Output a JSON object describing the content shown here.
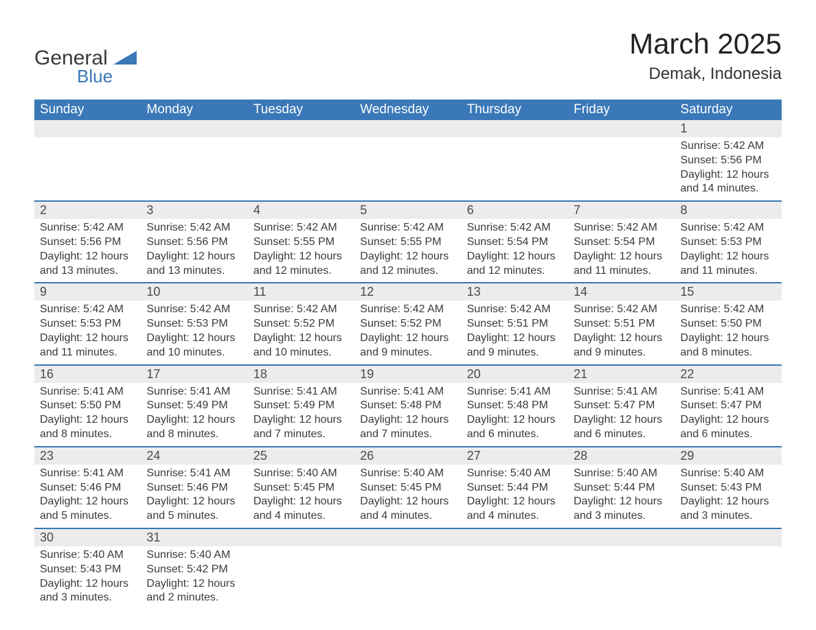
{
  "logo": {
    "word1": "General",
    "word2": "Blue"
  },
  "title": "March 2025",
  "location": "Demak, Indonesia",
  "colors": {
    "header_bg": "#3a78b8",
    "header_text": "#ffffff",
    "daynum_bg": "#ececec",
    "border": "#3a78b8",
    "text": "#3a3a3a",
    "logo_blue": "#3a78b8"
  },
  "day_names": [
    "Sunday",
    "Monday",
    "Tuesday",
    "Wednesday",
    "Thursday",
    "Friday",
    "Saturday"
  ],
  "weeks": [
    [
      null,
      null,
      null,
      null,
      null,
      null,
      {
        "n": "1",
        "sr": "Sunrise: 5:42 AM",
        "ss": "Sunset: 5:56 PM",
        "dl": "Daylight: 12 hours and 14 minutes."
      }
    ],
    [
      {
        "n": "2",
        "sr": "Sunrise: 5:42 AM",
        "ss": "Sunset: 5:56 PM",
        "dl": "Daylight: 12 hours and 13 minutes."
      },
      {
        "n": "3",
        "sr": "Sunrise: 5:42 AM",
        "ss": "Sunset: 5:56 PM",
        "dl": "Daylight: 12 hours and 13 minutes."
      },
      {
        "n": "4",
        "sr": "Sunrise: 5:42 AM",
        "ss": "Sunset: 5:55 PM",
        "dl": "Daylight: 12 hours and 12 minutes."
      },
      {
        "n": "5",
        "sr": "Sunrise: 5:42 AM",
        "ss": "Sunset: 5:55 PM",
        "dl": "Daylight: 12 hours and 12 minutes."
      },
      {
        "n": "6",
        "sr": "Sunrise: 5:42 AM",
        "ss": "Sunset: 5:54 PM",
        "dl": "Daylight: 12 hours and 12 minutes."
      },
      {
        "n": "7",
        "sr": "Sunrise: 5:42 AM",
        "ss": "Sunset: 5:54 PM",
        "dl": "Daylight: 12 hours and 11 minutes."
      },
      {
        "n": "8",
        "sr": "Sunrise: 5:42 AM",
        "ss": "Sunset: 5:53 PM",
        "dl": "Daylight: 12 hours and 11 minutes."
      }
    ],
    [
      {
        "n": "9",
        "sr": "Sunrise: 5:42 AM",
        "ss": "Sunset: 5:53 PM",
        "dl": "Daylight: 12 hours and 11 minutes."
      },
      {
        "n": "10",
        "sr": "Sunrise: 5:42 AM",
        "ss": "Sunset: 5:53 PM",
        "dl": "Daylight: 12 hours and 10 minutes."
      },
      {
        "n": "11",
        "sr": "Sunrise: 5:42 AM",
        "ss": "Sunset: 5:52 PM",
        "dl": "Daylight: 12 hours and 10 minutes."
      },
      {
        "n": "12",
        "sr": "Sunrise: 5:42 AM",
        "ss": "Sunset: 5:52 PM",
        "dl": "Daylight: 12 hours and 9 minutes."
      },
      {
        "n": "13",
        "sr": "Sunrise: 5:42 AM",
        "ss": "Sunset: 5:51 PM",
        "dl": "Daylight: 12 hours and 9 minutes."
      },
      {
        "n": "14",
        "sr": "Sunrise: 5:42 AM",
        "ss": "Sunset: 5:51 PM",
        "dl": "Daylight: 12 hours and 9 minutes."
      },
      {
        "n": "15",
        "sr": "Sunrise: 5:42 AM",
        "ss": "Sunset: 5:50 PM",
        "dl": "Daylight: 12 hours and 8 minutes."
      }
    ],
    [
      {
        "n": "16",
        "sr": "Sunrise: 5:41 AM",
        "ss": "Sunset: 5:50 PM",
        "dl": "Daylight: 12 hours and 8 minutes."
      },
      {
        "n": "17",
        "sr": "Sunrise: 5:41 AM",
        "ss": "Sunset: 5:49 PM",
        "dl": "Daylight: 12 hours and 8 minutes."
      },
      {
        "n": "18",
        "sr": "Sunrise: 5:41 AM",
        "ss": "Sunset: 5:49 PM",
        "dl": "Daylight: 12 hours and 7 minutes."
      },
      {
        "n": "19",
        "sr": "Sunrise: 5:41 AM",
        "ss": "Sunset: 5:48 PM",
        "dl": "Daylight: 12 hours and 7 minutes."
      },
      {
        "n": "20",
        "sr": "Sunrise: 5:41 AM",
        "ss": "Sunset: 5:48 PM",
        "dl": "Daylight: 12 hours and 6 minutes."
      },
      {
        "n": "21",
        "sr": "Sunrise: 5:41 AM",
        "ss": "Sunset: 5:47 PM",
        "dl": "Daylight: 12 hours and 6 minutes."
      },
      {
        "n": "22",
        "sr": "Sunrise: 5:41 AM",
        "ss": "Sunset: 5:47 PM",
        "dl": "Daylight: 12 hours and 6 minutes."
      }
    ],
    [
      {
        "n": "23",
        "sr": "Sunrise: 5:41 AM",
        "ss": "Sunset: 5:46 PM",
        "dl": "Daylight: 12 hours and 5 minutes."
      },
      {
        "n": "24",
        "sr": "Sunrise: 5:41 AM",
        "ss": "Sunset: 5:46 PM",
        "dl": "Daylight: 12 hours and 5 minutes."
      },
      {
        "n": "25",
        "sr": "Sunrise: 5:40 AM",
        "ss": "Sunset: 5:45 PM",
        "dl": "Daylight: 12 hours and 4 minutes."
      },
      {
        "n": "26",
        "sr": "Sunrise: 5:40 AM",
        "ss": "Sunset: 5:45 PM",
        "dl": "Daylight: 12 hours and 4 minutes."
      },
      {
        "n": "27",
        "sr": "Sunrise: 5:40 AM",
        "ss": "Sunset: 5:44 PM",
        "dl": "Daylight: 12 hours and 4 minutes."
      },
      {
        "n": "28",
        "sr": "Sunrise: 5:40 AM",
        "ss": "Sunset: 5:44 PM",
        "dl": "Daylight: 12 hours and 3 minutes."
      },
      {
        "n": "29",
        "sr": "Sunrise: 5:40 AM",
        "ss": "Sunset: 5:43 PM",
        "dl": "Daylight: 12 hours and 3 minutes."
      }
    ],
    [
      {
        "n": "30",
        "sr": "Sunrise: 5:40 AM",
        "ss": "Sunset: 5:43 PM",
        "dl": "Daylight: 12 hours and 3 minutes."
      },
      {
        "n": "31",
        "sr": "Sunrise: 5:40 AM",
        "ss": "Sunset: 5:42 PM",
        "dl": "Daylight: 12 hours and 2 minutes."
      },
      null,
      null,
      null,
      null,
      null
    ]
  ]
}
